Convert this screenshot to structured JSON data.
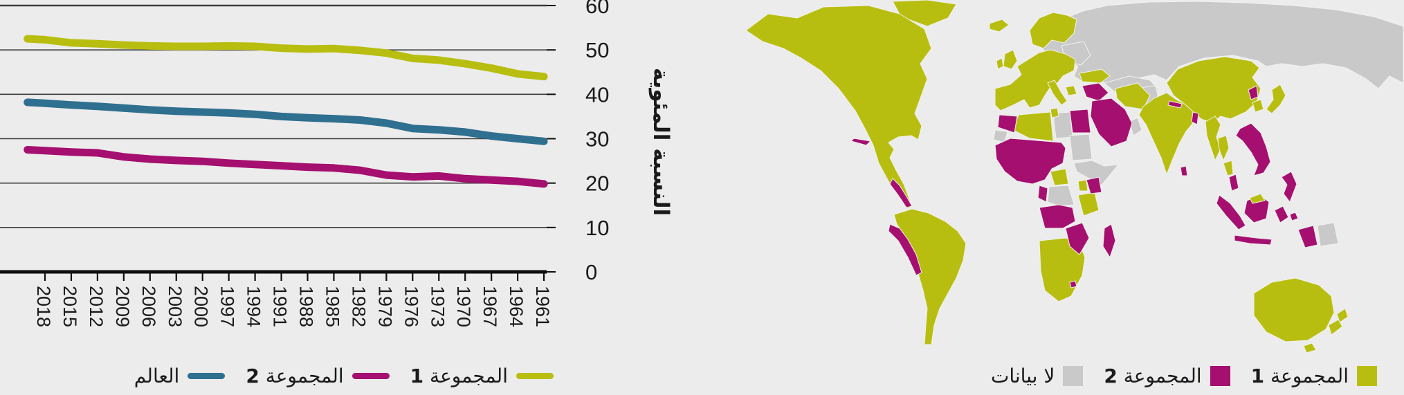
{
  "page": {
    "background": "#ececec",
    "direction": "rtl"
  },
  "colors": {
    "group1": "#b8be0f",
    "group2": "#a50f6f",
    "world": "#2f6f8f",
    "no_data": "#c9c9c9",
    "grid": "#3d3d3d",
    "axis": "#0e0e0e",
    "text": "#1a1a1a",
    "map_border": "#f1f1ed"
  },
  "chart_data": {
    "type": "line",
    "title": "",
    "ylabel": "النسبة المئوية",
    "xlabel": "",
    "ylim": [
      0,
      60
    ],
    "yticks": [
      0,
      10,
      20,
      30,
      40,
      50,
      60
    ],
    "ytick_labels": [
      "0",
      "10",
      "20",
      "30",
      "40",
      "50",
      "60"
    ],
    "x_axis_reversed_rtl": true,
    "tick_years": [
      2018,
      2015,
      2012,
      2009,
      2006,
      2003,
      2000,
      1997,
      1994,
      1991,
      1988,
      1985,
      1982,
      1979,
      1976,
      1973,
      1970,
      1967,
      1964,
      1961
    ],
    "years": [
      2020,
      2018,
      2015,
      2012,
      2009,
      2006,
      2003,
      2000,
      1997,
      1994,
      1991,
      1988,
      1985,
      1982,
      1979,
      1976,
      1973,
      1970,
      1967,
      1964,
      1961
    ],
    "series": [
      {
        "name": "المجموعة 1",
        "color_key": "group1",
        "values": [
          52.5,
          52.3,
          51.6,
          51.4,
          51.1,
          50.9,
          50.8,
          50.8,
          50.9,
          50.8,
          50.4,
          50.2,
          50.3,
          49.9,
          49.3,
          48.1,
          47.7,
          46.9,
          45.9,
          44.6,
          44.0
        ]
      },
      {
        "name": "العالم",
        "color_key": "world",
        "values": [
          38.2,
          38.0,
          37.6,
          37.3,
          36.9,
          36.5,
          36.2,
          36.0,
          35.8,
          35.5,
          35.0,
          34.7,
          34.5,
          34.2,
          33.5,
          32.3,
          32.0,
          31.5,
          30.6,
          30.0,
          29.4
        ]
      },
      {
        "name": "المجموعة 2",
        "color_key": "group2",
        "values": [
          27.5,
          27.3,
          27.0,
          26.8,
          25.9,
          25.4,
          25.1,
          24.9,
          24.5,
          24.2,
          23.9,
          23.6,
          23.4,
          22.9,
          21.8,
          21.4,
          21.6,
          21.0,
          20.7,
          20.4,
          19.8
        ]
      }
    ],
    "legend": [
      {
        "label": "المجموعة",
        "num": "1",
        "color_key": "group1"
      },
      {
        "label": "المجموعة",
        "num": "2",
        "color_key": "group2"
      },
      {
        "label": "العالم",
        "num": "",
        "color_key": "world"
      }
    ],
    "legend_position": "bottom-right",
    "grid": true
  },
  "map": {
    "type": "choropleth-world",
    "legend": [
      {
        "label": "المجموعة",
        "num": "1",
        "color_key": "group1"
      },
      {
        "label": "المجموعة",
        "num": "2",
        "color_key": "group2"
      },
      {
        "label": "لا بيانات",
        "num": "",
        "color_key": "no_data"
      }
    ],
    "regions": [
      {
        "name": "North America & Greenland",
        "category": "group1"
      },
      {
        "name": "South America (most)",
        "category": "group1"
      },
      {
        "name": "Europe (most)",
        "category": "group1"
      },
      {
        "name": "Turkey & Iran",
        "category": "group1"
      },
      {
        "name": "Algeria & Tunisia",
        "category": "group1"
      },
      {
        "name": "Central African Republic & Uganda & Tanzania",
        "category": "group1"
      },
      {
        "name": "Southern Africa (Namibia, Botswana, South Africa)",
        "category": "group1"
      },
      {
        "name": "India & Pakistan",
        "category": "group1"
      },
      {
        "name": "China & Mongolia",
        "category": "group1"
      },
      {
        "name": "South Korea & Japan",
        "category": "group1"
      },
      {
        "name": "Myanmar & Thailand",
        "category": "group1"
      },
      {
        "name": "Australia & New Zealand",
        "category": "group1"
      },
      {
        "name": "Cuba",
        "category": "group2"
      },
      {
        "name": "Nicaragua, Costa Rica & Panama",
        "category": "group2"
      },
      {
        "name": "Ecuador & Peru",
        "category": "group2"
      },
      {
        "name": "Morocco",
        "category": "group2"
      },
      {
        "name": "Sahel & West Africa",
        "category": "group2"
      },
      {
        "name": "Egypt",
        "category": "group2"
      },
      {
        "name": "Saudi Arabia & Yemen",
        "category": "group2"
      },
      {
        "name": "Iraq & Syria",
        "category": "group2"
      },
      {
        "name": "Kenya",
        "category": "group2"
      },
      {
        "name": "Angola, Zambia, Zimbabwe & Mozambique",
        "category": "group2"
      },
      {
        "name": "Madagascar",
        "category": "group2"
      },
      {
        "name": "North Korea",
        "category": "group2"
      },
      {
        "name": "Nepal, Bangladesh & Sri Lanka",
        "category": "group2"
      },
      {
        "name": "Laos, Vietnam & Cambodia",
        "category": "group2"
      },
      {
        "name": "Indonesia & Malaysia",
        "category": "group2"
      },
      {
        "name": "Philippines",
        "category": "group2"
      },
      {
        "name": "Russia & Central Asia",
        "category": "no_data"
      },
      {
        "name": "Ukraine & Belarus",
        "category": "no_data"
      },
      {
        "name": "Afghanistan",
        "category": "no_data"
      },
      {
        "name": "Libya & Western Sahara",
        "category": "no_data"
      },
      {
        "name": "Sudan, Ethiopia & Somalia",
        "category": "no_data"
      },
      {
        "name": "DR Congo",
        "category": "no_data"
      },
      {
        "name": "Oman",
        "category": "no_data"
      },
      {
        "name": "Hispaniola",
        "category": "no_data"
      },
      {
        "name": "Papua New Guinea",
        "category": "no_data"
      }
    ]
  }
}
